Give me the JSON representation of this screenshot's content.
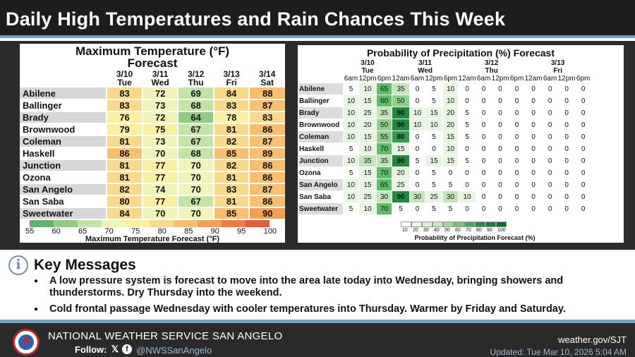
{
  "header": {
    "title": "Daily High Temperatures and Rain Chances This Week"
  },
  "temperature": {
    "title_line1": "Maximum Temperature (°F)",
    "title_line2": "Forecast",
    "columns": [
      {
        "date": "3/10",
        "day": "Tue"
      },
      {
        "date": "3/11",
        "day": "Wed"
      },
      {
        "date": "3/12",
        "day": "Thu"
      },
      {
        "date": "3/13",
        "day": "Fri"
      },
      {
        "date": "3/14",
        "day": "Sat"
      }
    ],
    "rows": [
      {
        "city": "Abilene",
        "values": [
          83,
          72,
          69,
          84,
          88
        ]
      },
      {
        "city": "Ballinger",
        "values": [
          83,
          73,
          68,
          83,
          87
        ]
      },
      {
        "city": "Brady",
        "values": [
          76,
          72,
          64,
          78,
          83
        ]
      },
      {
        "city": "Brownwood",
        "values": [
          79,
          75,
          67,
          81,
          86
        ]
      },
      {
        "city": "Coleman",
        "values": [
          81,
          73,
          67,
          82,
          87
        ]
      },
      {
        "city": "Haskell",
        "values": [
          86,
          70,
          68,
          85,
          89
        ]
      },
      {
        "city": "Junction",
        "values": [
          81,
          77,
          70,
          82,
          86
        ]
      },
      {
        "city": "Ozona",
        "values": [
          81,
          77,
          70,
          81,
          86
        ]
      },
      {
        "city": "San Angelo",
        "values": [
          82,
          74,
          70,
          83,
          87
        ]
      },
      {
        "city": "San Saba",
        "values": [
          80,
          77,
          67,
          81,
          86
        ]
      },
      {
        "city": "Sweetwater",
        "values": [
          84,
          70,
          70,
          85,
          90
        ]
      }
    ],
    "legend_labels": [
      "55",
      "60",
      "65",
      "70",
      "75",
      "80",
      "85",
      "90",
      "95",
      "100"
    ],
    "legend_colors": [
      "#5fb46a",
      "#8fcc84",
      "#c4e3a6",
      "#f0f4b8",
      "#fbf0a0",
      "#fbd98a",
      "#f9bf6c",
      "#f5a04f",
      "#f07c3e",
      "#e85a34"
    ],
    "legend_title": "Maximum Temperature Forecast (°F)"
  },
  "precip": {
    "title": "Probability of Precipitation (%) Forecast",
    "days": [
      {
        "date": "3/10",
        "day": "Tue"
      },
      {
        "date": "3/11",
        "day": "Wed"
      },
      {
        "date": "3/12",
        "day": "Thu"
      },
      {
        "date": "3/13",
        "day": "Fri"
      }
    ],
    "times": [
      "6am",
      "12pm",
      "6pm",
      "12am",
      "6am",
      "12pm",
      "6pm",
      "12am",
      "6am",
      "12pm",
      "6pm",
      "12am",
      "6am",
      "12pm",
      "6pm"
    ],
    "rows": [
      {
        "city": "Abilene",
        "values": [
          5,
          10,
          65,
          35,
          0,
          5,
          10,
          0,
          0,
          0,
          0,
          0,
          0,
          0,
          0
        ]
      },
      {
        "city": "Ballinger",
        "values": [
          10,
          15,
          60,
          50,
          0,
          5,
          10,
          0,
          0,
          0,
          0,
          0,
          0,
          0,
          0
        ]
      },
      {
        "city": "Brady",
        "values": [
          10,
          25,
          35,
          90,
          10,
          15,
          20,
          5,
          0,
          0,
          0,
          0,
          0,
          0,
          0
        ]
      },
      {
        "city": "Brownwood",
        "values": [
          10,
          20,
          50,
          90,
          10,
          10,
          20,
          5,
          0,
          0,
          0,
          0,
          0,
          0,
          0
        ]
      },
      {
        "city": "Coleman",
        "values": [
          10,
          15,
          55,
          80,
          0,
          5,
          15,
          5,
          0,
          0,
          0,
          0,
          0,
          0,
          0
        ]
      },
      {
        "city": "Haskell",
        "values": [
          5,
          10,
          70,
          15,
          0,
          0,
          10,
          0,
          0,
          0,
          0,
          0,
          0,
          0,
          0
        ]
      },
      {
        "city": "Junction",
        "values": [
          10,
          35,
          35,
          90,
          5,
          15,
          15,
          5,
          0,
          0,
          0,
          0,
          0,
          0,
          0
        ]
      },
      {
        "city": "Ozona",
        "values": [
          5,
          15,
          70,
          20,
          0,
          5,
          0,
          0,
          0,
          0,
          0,
          0,
          0,
          0,
          0
        ]
      },
      {
        "city": "San Angelo",
        "values": [
          10,
          15,
          65,
          25,
          0,
          5,
          5,
          0,
          0,
          0,
          0,
          0,
          0,
          0,
          0
        ]
      },
      {
        "city": "San Saba",
        "values": [
          10,
          25,
          30,
          90,
          30,
          25,
          30,
          10,
          0,
          0,
          0,
          0,
          0,
          0,
          0
        ]
      },
      {
        "city": "Sweetwater",
        "values": [
          5,
          10,
          70,
          5,
          0,
          5,
          5,
          0,
          0,
          0,
          0,
          0,
          0,
          0,
          0
        ]
      }
    ],
    "legend_labels": [
      "10",
      "20",
      "30",
      "40",
      "50",
      "60",
      "70",
      "80",
      "90",
      "100"
    ],
    "legend_colors": [
      "#ffffff",
      "#edf8e9",
      "#d9f0d3",
      "#c7e9c0",
      "#a1d99b",
      "#74c476",
      "#41ab5d",
      "#238b45",
      "#1a7a38",
      "#006d2c"
    ],
    "legend_title": "Probability of Precipitation Forecast (%)"
  },
  "key_messages": {
    "icon": "info-icon",
    "title": "Key Messages",
    "items": [
      "A low pressure system is forecast to move into the area late today into Wednesday, bringing showers and thunderstorms. Dry Thursday into the weekend.",
      "Cold frontal passage Wednesday with cooler temperatures into Thursday. Warmer by Friday and Saturday."
    ]
  },
  "footer": {
    "office": "NATIONAL WEATHER SERVICE SAN ANGELO",
    "follow_label": "Follow:",
    "x_glyph": "𝕏",
    "fb_glyph": "f",
    "handle": "@NWSSanAngelo",
    "website": "weather.gov/SJT",
    "updated": "Updated: Tue Mar 10, 2026 5:04 AM"
  }
}
